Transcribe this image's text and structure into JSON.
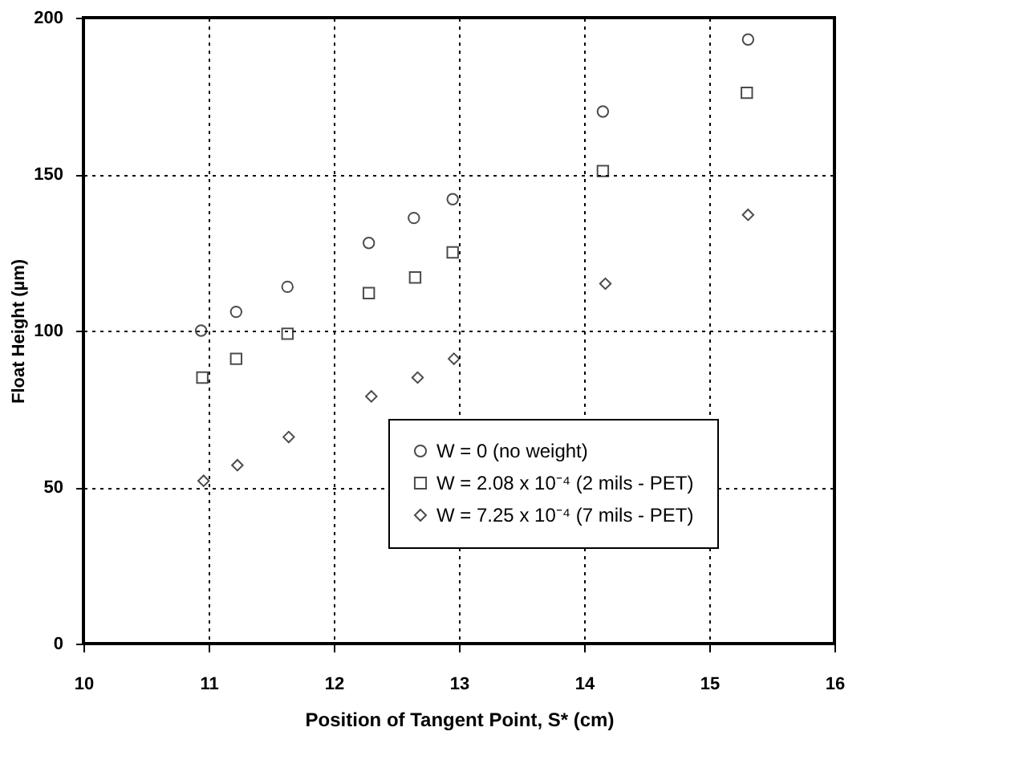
{
  "chart_data": {
    "type": "scatter",
    "xlabel": "Position of Tangent Point, S* (cm)",
    "ylabel": "Float Height (µm)",
    "xlim": [
      10,
      16
    ],
    "xticks": [
      10,
      11,
      12,
      13,
      14,
      15,
      16
    ],
    "ylim": [
      0,
      200
    ],
    "yticks": [
      0,
      50,
      100,
      150,
      200
    ],
    "grid": true,
    "legend": "bottom right",
    "series": [
      {
        "name": "W = 0 (no weight)",
        "color": "#000000",
        "marker": "circle",
        "x": [
          10.94,
          11.22,
          11.63,
          12.28,
          12.64,
          12.95,
          14.15,
          15.31
        ],
        "values": [
          100,
          106,
          114,
          128,
          136,
          142,
          170,
          193
        ]
      },
      {
        "name": "W = 2.08 x 10⁻⁴ (2 mils - PET)",
        "color": "#000000",
        "marker": "square",
        "x": [
          10.95,
          11.22,
          11.63,
          12.28,
          12.65,
          12.95,
          14.15,
          15.3
        ],
        "values": [
          85,
          91,
          99,
          112,
          117,
          125,
          151,
          176
        ]
      },
      {
        "name": "W = 7.25 x 10⁻⁴ (7 mils - PET)",
        "color": "#000000",
        "marker": "diamond",
        "x": [
          10.96,
          11.23,
          11.64,
          12.3,
          12.67,
          12.96,
          14.17,
          15.31
        ],
        "values": [
          52,
          57,
          66,
          79,
          85,
          91,
          115,
          137
        ]
      }
    ]
  }
}
